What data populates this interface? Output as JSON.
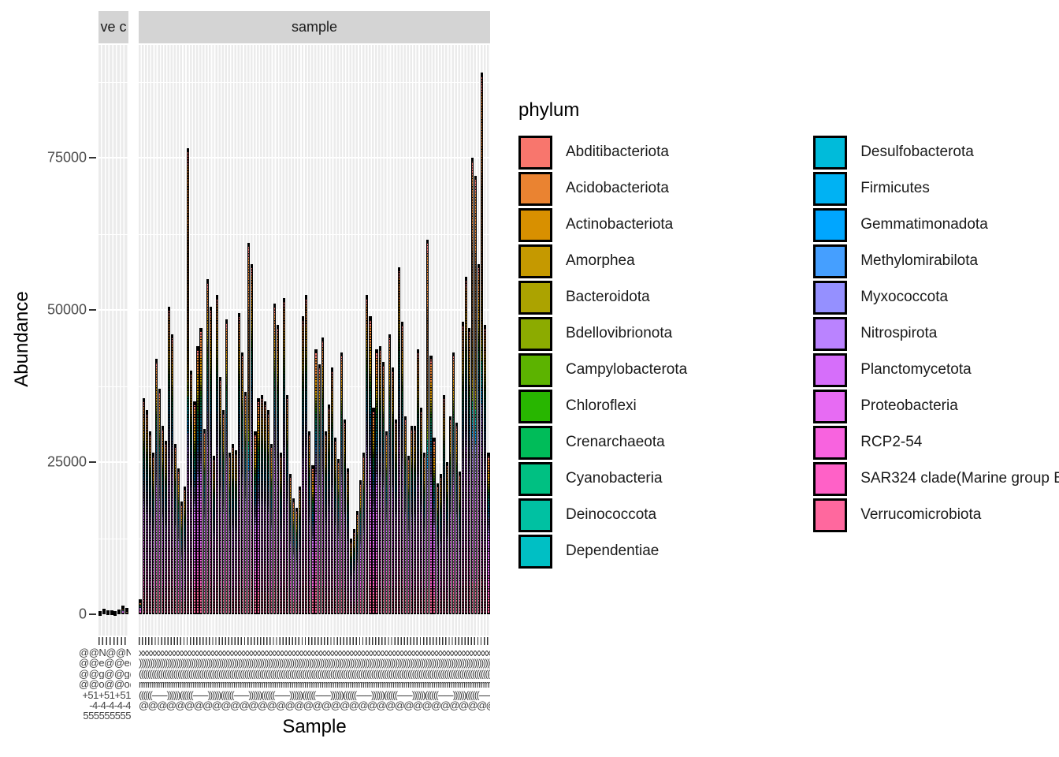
{
  "figure": {
    "background": "#FFFFFF"
  },
  "facets": [
    {
      "id": "neg",
      "strip_label": "ve c"
    },
    {
      "id": "sample",
      "strip_label": "sample"
    }
  ],
  "y_axis": {
    "label": "Abundance",
    "tick_values": [
      0,
      25000,
      50000,
      75000
    ],
    "tick_labels": [
      "0",
      "25000",
      "50000",
      "75000"
    ],
    "minor_values": [
      12500,
      37500,
      62500,
      87500
    ],
    "range": [
      0,
      93350
    ]
  },
  "x_axis": {
    "label": "Sample",
    "overlapping_label_rows_main": [
      {
        "pattern": "x"
      },
      {
        "pattern": ")"
      },
      {
        "pattern": "("
      },
      {
        "pattern": "r"
      },
      {
        "pattern": "((((((-------))))))"
      },
      {
        "pattern": "@"
      }
    ],
    "overlapping_label_rows_neg": [
      {
        "pattern": "@@N"
      },
      {
        "pattern": "@@e"
      },
      {
        "pattern": "@@g"
      },
      {
        "pattern": "@@o"
      },
      {
        "pattern": "+51"
      },
      {
        "pattern": "-4"
      },
      {
        "pattern": "5"
      }
    ]
  },
  "legend": {
    "title": "phylum",
    "items": [
      {
        "label": "Abditibacteriota",
        "color": "#F8766D"
      },
      {
        "label": "Acidobacteriota",
        "color": "#EA8331"
      },
      {
        "label": "Actinobacteriota",
        "color": "#D89000"
      },
      {
        "label": "Amorphea",
        "color": "#C59900"
      },
      {
        "label": "Bacteroidota",
        "color": "#ACA300"
      },
      {
        "label": "Bdellovibrionota",
        "color": "#8CAB00"
      },
      {
        "label": "Campylobacterota",
        "color": "#5CB300"
      },
      {
        "label": "Chloroflexi",
        "color": "#28B600"
      },
      {
        "label": "Crenarchaeota",
        "color": "#00BC59"
      },
      {
        "label": "Cyanobacteria",
        "color": "#00C082"
      },
      {
        "label": "Deinococcota",
        "color": "#00C1A2"
      },
      {
        "label": "Dependentiae",
        "color": "#00BFC4"
      },
      {
        "label": "Desulfobacterota",
        "color": "#00BBDA"
      },
      {
        "label": "Firmicutes",
        "color": "#00B2F3"
      },
      {
        "label": "Gemmatimonadota",
        "color": "#00A6FF"
      },
      {
        "label": "Methylomirabilota",
        "color": "#459FFF"
      },
      {
        "label": "Myxococcota",
        "color": "#9590FF"
      },
      {
        "label": "Nitrospirota",
        "color": "#BA83FF"
      },
      {
        "label": "Planctomycetota",
        "color": "#D66EFA"
      },
      {
        "label": "Proteobacteria",
        "color": "#E76BF3"
      },
      {
        "label": "RCP2-54",
        "color": "#F863DF"
      },
      {
        "label": "SAR324 clade(Marine group B)",
        "color": "#FF61C7"
      },
      {
        "label": "Verrucomicrobiota",
        "color": "#FF689E"
      }
    ],
    "column_split": 12
  },
  "style": {
    "panel_bg": "#EBEBEB",
    "strip_bg": "#D4D4D4",
    "grid_color": "#FFFFFF",
    "axis_text_color": "#4D4D4D",
    "tick_color": "#333333",
    "bar_outline": "#000000"
  },
  "chart_data": {
    "type": "bar",
    "subtype": "stacked",
    "title": "",
    "xlabel": "Sample",
    "ylabel": "Abundance",
    "ylim": [
      0,
      93350
    ],
    "yticks": [
      0,
      25000,
      50000,
      75000
    ],
    "grid": "on",
    "legend_position": "right",
    "stack_order_top_to_bottom": [
      "Abditibacteriota",
      "Acidobacteriota",
      "Actinobacteriota",
      "Amorphea",
      "Bacteroidota",
      "Bdellovibrionota",
      "Campylobacterota",
      "Chloroflexi",
      "Crenarchaeota",
      "Cyanobacteria",
      "Deinococcota",
      "Dependentiae",
      "Desulfobacterota",
      "Firmicutes",
      "Gemmatimonadota",
      "Methylomirabilota",
      "Myxococcota",
      "Nitrospirota",
      "Planctomycetota",
      "Proteobacteria",
      "RCP2-54",
      "SAR324 clade(Marine group B)",
      "Verrucomicrobiota"
    ],
    "facets": [
      {
        "strip": "ve c",
        "bar_totals_estimated": [
          500,
          900,
          700,
          600,
          500,
          800,
          1400,
          1100
        ]
      },
      {
        "strip": "sample",
        "bar_totals_estimated": [
          2500,
          35500,
          33500,
          30000,
          26500,
          42000,
          37000,
          31000,
          28500,
          50500,
          46000,
          28000,
          24000,
          18500,
          21000,
          76500,
          40000,
          35000,
          44000,
          47000,
          30500,
          55000,
          50500,
          26000,
          52500,
          39000,
          33500,
          48500,
          26500,
          28000,
          27000,
          49500,
          43000,
          36500,
          61000,
          57500,
          30000,
          35500,
          36000,
          35000,
          33500,
          28000,
          51000,
          47500,
          26500,
          52000,
          36000,
          23000,
          19000,
          17500,
          21000,
          49000,
          52500,
          30000,
          24500,
          43500,
          41000,
          45500,
          30000,
          34500,
          40500,
          29000,
          25500,
          43000,
          32000,
          24000,
          12500,
          14000,
          17000,
          22000,
          26500,
          52500,
          49000,
          34000,
          43500,
          44000,
          41500,
          30000,
          46000,
          40500,
          32000,
          57000,
          48000,
          32500,
          26000,
          31000,
          31000,
          43500,
          34000,
          26500,
          61500,
          42500,
          29000,
          21500,
          23000,
          36000,
          25000,
          32500,
          43000,
          31500,
          23500,
          48000,
          55500,
          47000,
          75000,
          72000,
          57500,
          89000,
          47500,
          26500
        ]
      }
    ]
  }
}
